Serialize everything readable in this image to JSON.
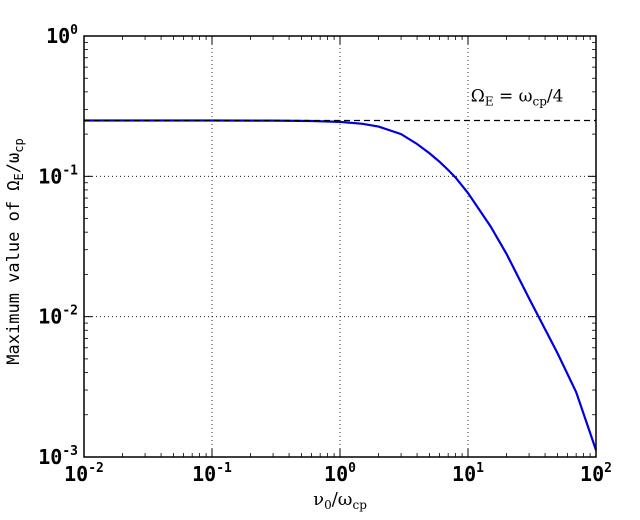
{
  "chart_data": {
    "type": "line",
    "x_scale": "log",
    "y_scale": "log",
    "xlim": [
      0.01,
      100
    ],
    "ylim": [
      0.001,
      1
    ],
    "grid": true,
    "xlabel_parts": {
      "main": "ν",
      "sub1": "0",
      "slash": "/ω",
      "sub2": "cp"
    },
    "ylabel_parts": {
      "prefix": "Maximum value of  Ω",
      "sub1": "E",
      "slash": "/ω",
      "sub2": "cp"
    },
    "annotation_parts": {
      "main": "Ω",
      "sub1": "E",
      "eq": " = ω",
      "sub2": "cp",
      "tail": "/4"
    },
    "x_ticks": [
      {
        "value": 0.01,
        "base": "10",
        "exp": "-2"
      },
      {
        "value": 0.1,
        "base": "10",
        "exp": "-1"
      },
      {
        "value": 1,
        "base": "10",
        "exp": "0"
      },
      {
        "value": 10,
        "base": "10",
        "exp": "1"
      },
      {
        "value": 100,
        "base": "10",
        "exp": "2"
      }
    ],
    "y_ticks": [
      {
        "value": 0.001,
        "base": "10",
        "exp": "-3"
      },
      {
        "value": 0.01,
        "base": "10",
        "exp": "-2"
      },
      {
        "value": 0.1,
        "base": "10",
        "exp": "-1"
      },
      {
        "value": 1,
        "base": "10",
        "exp": "0"
      }
    ],
    "series": [
      {
        "style": "solid",
        "color": "#0000dd",
        "x": [
          0.01,
          0.1,
          0.3,
          0.6,
          1,
          1.5,
          2,
          3,
          4,
          5,
          6,
          7,
          8,
          10,
          15,
          20,
          30,
          50,
          70,
          100
        ],
        "y": [
          0.25,
          0.2499,
          0.2494,
          0.2478,
          0.2443,
          0.2368,
          0.2263,
          0.2,
          0.17,
          0.146,
          0.127,
          0.111,
          0.098,
          0.076,
          0.044,
          0.028,
          0.0135,
          0.0055,
          0.0029,
          0.00112
        ]
      },
      {
        "style": "dashed",
        "color": "#000000",
        "x": [
          0.01,
          100
        ],
        "y": [
          0.25,
          0.25
        ]
      }
    ],
    "annotation_anchor": {
      "x": 10.5,
      "y": 0.34
    }
  }
}
